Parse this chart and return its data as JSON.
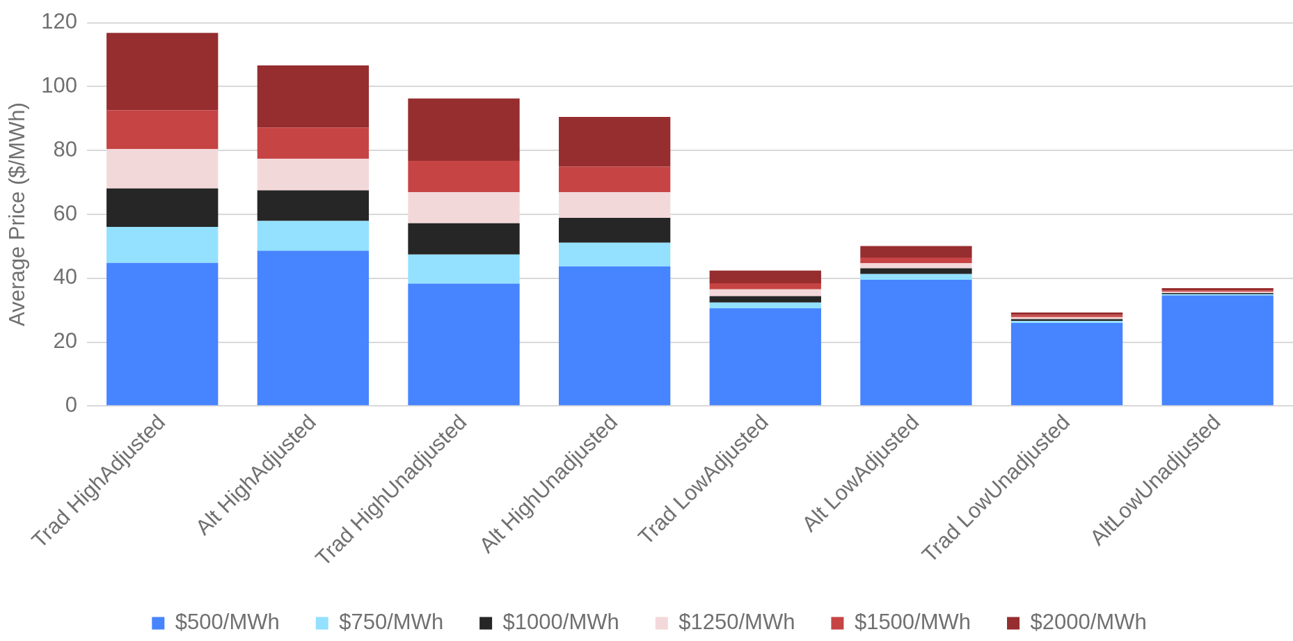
{
  "chart_data": {
    "type": "bar",
    "stacked": true,
    "ylabel": "Average Price ($/MWh)",
    "categories": [
      "Trad HighAdjusted",
      "Alt HighAdjusted",
      "Trad HighUnadjusted",
      "Alt HighUnadjusted",
      "Trad LowAdjusted",
      "Alt LowAdjusted",
      "Trad LowUnadjusted",
      "AltLowUnadjusted"
    ],
    "series": [
      {
        "name": "$500/MWh",
        "color": "#4784ff",
        "values": [
          44.8,
          48.6,
          38.3,
          43.7,
          30.6,
          39.5,
          26.0,
          34.6
        ]
      },
      {
        "name": "$750/MWh",
        "color": "#93e1ff",
        "values": [
          11.3,
          9.3,
          9.1,
          7.4,
          1.8,
          1.8,
          0.6,
          0.4
        ]
      },
      {
        "name": "$1000/MWh",
        "color": "#262626",
        "values": [
          12.0,
          9.6,
          9.8,
          7.8,
          2.0,
          1.8,
          0.6,
          0.4
        ]
      },
      {
        "name": "$1250/MWh",
        "color": "#f3d8da",
        "values": [
          12.3,
          9.9,
          9.7,
          8.0,
          2.1,
          1.6,
          0.6,
          0.4
        ]
      },
      {
        "name": "$1500/MWh",
        "color": "#c64444",
        "values": [
          12.2,
          9.8,
          9.9,
          8.0,
          1.9,
          1.8,
          0.7,
          0.4
        ]
      },
      {
        "name": "$2000/MWh",
        "color": "#962d2f",
        "values": [
          24.2,
          19.4,
          19.5,
          15.6,
          4.0,
          3.6,
          0.8,
          0.7
        ]
      }
    ],
    "ylim": [
      0,
      120
    ],
    "yticks": [
      0,
      20,
      40,
      60,
      80,
      100,
      120
    ],
    "grid": "y",
    "legend": "bottom"
  }
}
